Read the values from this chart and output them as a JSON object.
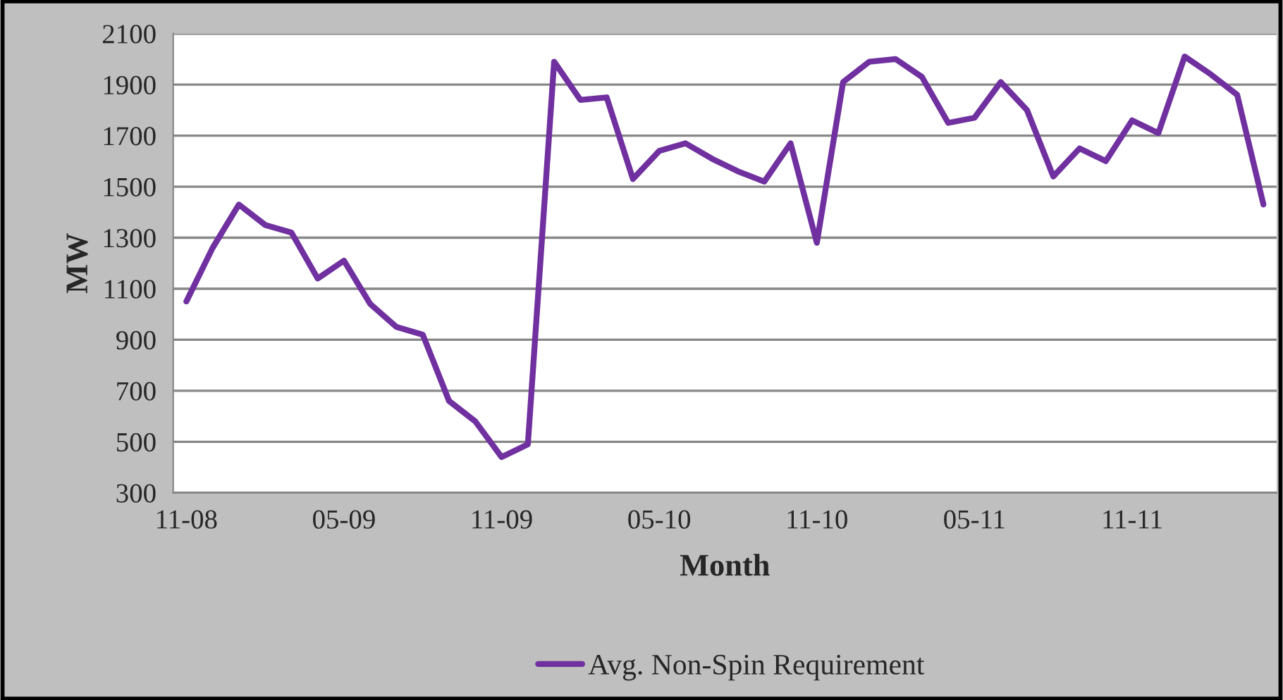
{
  "chart_data": {
    "type": "line",
    "xlabel": "Month",
    "ylabel": "MW",
    "categories": [
      "11-08",
      null,
      null,
      null,
      null,
      null,
      "05-09",
      null,
      null,
      null,
      null,
      null,
      "11-09",
      null,
      null,
      null,
      null,
      null,
      "05-10",
      null,
      null,
      null,
      null,
      null,
      "11-10",
      null,
      null,
      null,
      null,
      null,
      "05-11",
      null,
      null,
      null,
      null,
      null,
      "11-11",
      null,
      null,
      null,
      null,
      null
    ],
    "series": [
      {
        "name": "Avg. Non-Spin Requirement",
        "color": "#7030a0",
        "values": [
          1050,
          1260,
          1430,
          1350,
          1320,
          1140,
          1210,
          1040,
          950,
          920,
          660,
          580,
          440,
          490,
          1990,
          1840,
          1850,
          1530,
          1640,
          1670,
          1610,
          1560,
          1520,
          1670,
          1280,
          1910,
          1990,
          2000,
          1930,
          1750,
          1770,
          1910,
          1800,
          1540,
          1650,
          1600,
          1760,
          1710,
          2010,
          1940,
          1860,
          1430
        ]
      }
    ],
    "ylim": [
      300,
      2100
    ],
    "yticks": [
      300,
      500,
      700,
      900,
      1100,
      1300,
      1500,
      1700,
      1900,
      2100
    ],
    "grid": "y",
    "legend": "bottom",
    "marker": "none",
    "line_style": "solid"
  }
}
